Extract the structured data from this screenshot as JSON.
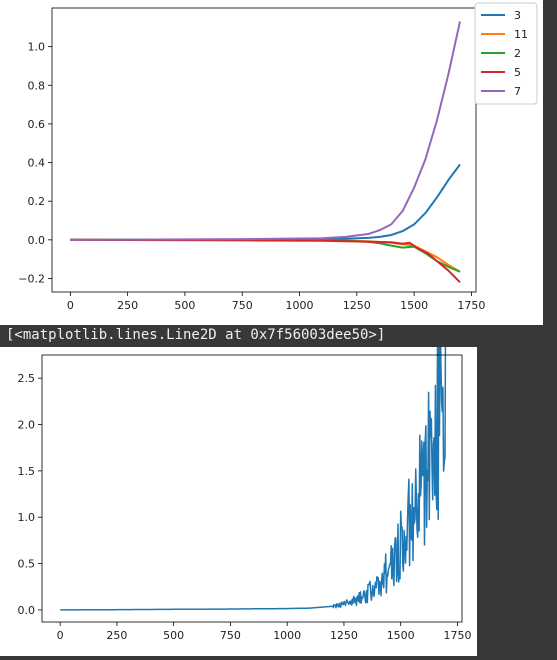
{
  "output_text": "[<matplotlib.lines.Line2D at 0x7f56003dee50>]",
  "chart_data": [
    {
      "type": "line",
      "title": "",
      "xlabel": "",
      "ylabel": "",
      "xlim": [
        -80,
        1770
      ],
      "ylim": [
        -0.27,
        1.2
      ],
      "xticks": [
        0,
        250,
        500,
        750,
        1000,
        1250,
        1500,
        1750
      ],
      "yticks": [
        -0.2,
        0.0,
        0.2,
        0.4,
        0.6,
        0.8,
        1.0
      ],
      "ytick_labels": [
        "−0.2",
        "0.0",
        "0.2",
        "0.4",
        "0.6",
        "0.8",
        "1.0"
      ],
      "legend": "outside-top-right",
      "grid": false,
      "series": [
        {
          "name": "3",
          "color": "#1f77b4",
          "x": [
            0,
            760,
            1100,
            1200,
            1300,
            1350,
            1400,
            1450,
            1500,
            1550,
            1600,
            1650,
            1700
          ],
          "y": [
            0,
            0.002,
            0.004,
            0.006,
            0.01,
            0.015,
            0.025,
            0.045,
            0.08,
            0.14,
            0.22,
            0.31,
            0.39
          ]
        },
        {
          "name": "11",
          "color": "#ff7f0e",
          "x": [
            0,
            760,
            1100,
            1200,
            1300,
            1400,
            1500,
            1550,
            1600,
            1650,
            1700
          ],
          "y": [
            0,
            0,
            -0.002,
            -0.004,
            -0.007,
            -0.015,
            -0.03,
            -0.06,
            -0.09,
            -0.13,
            -0.165
          ]
        },
        {
          "name": "2",
          "color": "#2ca02c",
          "x": [
            0,
            760,
            1100,
            1200,
            1300,
            1350,
            1400,
            1450,
            1500,
            1550,
            1600,
            1650,
            1700
          ],
          "y": [
            0,
            0,
            -0.002,
            -0.005,
            -0.01,
            -0.018,
            -0.03,
            -0.04,
            -0.035,
            -0.07,
            -0.11,
            -0.14,
            -0.165
          ]
        },
        {
          "name": "5",
          "color": "#d62728",
          "x": [
            0,
            760,
            1100,
            1200,
            1300,
            1400,
            1450,
            1480,
            1510,
            1560,
            1600,
            1650,
            1700
          ],
          "y": [
            0,
            -0.003,
            -0.005,
            -0.007,
            -0.01,
            -0.012,
            -0.02,
            -0.015,
            -0.04,
            -0.07,
            -0.11,
            -0.16,
            -0.22
          ]
        },
        {
          "name": "7",
          "color": "#9467bd",
          "x": [
            0,
            760,
            1100,
            1200,
            1300,
            1350,
            1400,
            1450,
            1500,
            1550,
            1600,
            1650,
            1700
          ],
          "y": [
            0,
            0.004,
            0.008,
            0.015,
            0.03,
            0.05,
            0.08,
            0.15,
            0.27,
            0.42,
            0.62,
            0.86,
            1.13
          ]
        }
      ]
    },
    {
      "type": "line",
      "title": "",
      "xlabel": "",
      "ylabel": "",
      "xlim": [
        -80,
        1770
      ],
      "ylim": [
        -0.13,
        2.75
      ],
      "xticks": [
        0,
        250,
        500,
        750,
        1000,
        1250,
        1500,
        1750
      ],
      "yticks": [
        0.0,
        0.5,
        1.0,
        1.5,
        2.0,
        2.5
      ],
      "ytick_labels": [
        "0.0",
        "0.5",
        "1.0",
        "1.5",
        "2.0",
        "2.5"
      ],
      "legend": "none",
      "grid": false,
      "noisy": true,
      "series": [
        {
          "name": "",
          "color": "#1f77b4",
          "x": [
            0,
            760,
            1000,
            1100,
            1200,
            1250,
            1300,
            1350,
            1400,
            1450,
            1500,
            1550,
            1600,
            1650,
            1700
          ],
          "y": [
            0,
            0.01,
            0.015,
            0.02,
            0.04,
            0.06,
            0.1,
            0.17,
            0.28,
            0.45,
            0.7,
            1.0,
            1.4,
            1.85,
            2.4
          ]
        }
      ]
    }
  ]
}
